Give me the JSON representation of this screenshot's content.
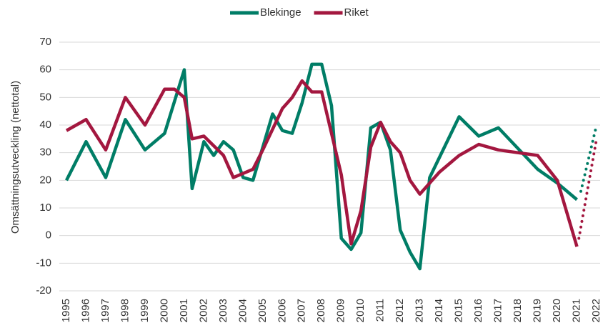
{
  "chart_data": {
    "type": "line",
    "y_label": "Omsättningsutveckling (nettotal)",
    "xlim": [
      1995,
      2022
    ],
    "xticks": [
      1995,
      1996,
      1997,
      1998,
      1999,
      2000,
      2001,
      2002,
      2003,
      2004,
      2005,
      2006,
      2007,
      2008,
      2009,
      2010,
      2011,
      2012,
      2013,
      2014,
      2015,
      2016,
      2017,
      2018,
      2019,
      2020,
      2021,
      2022
    ],
    "ylim": [
      -20,
      70
    ],
    "yticks": [
      -20,
      -10,
      0,
      10,
      20,
      30,
      40,
      50,
      60,
      70
    ],
    "grid": true,
    "legend": "top",
    "series": [
      {
        "name": "Blekinge",
        "color": "#007d66",
        "x": [
          1995,
          1996,
          1997,
          1998,
          1999,
          2000,
          2001,
          2001.4,
          2002,
          2002.5,
          2003,
          2003.5,
          2004,
          2004.5,
          2005.5,
          2006,
          2006.5,
          2007,
          2007.5,
          2008,
          2008.5,
          2009,
          2009.5,
          2010,
          2010.5,
          2011,
          2011.5,
          2012,
          2012.5,
          2013,
          2013.5,
          2015,
          2016,
          2017,
          2019,
          2020,
          2021
        ],
        "values": [
          20,
          34,
          21,
          42,
          31,
          37,
          60,
          17,
          34,
          29,
          34,
          31,
          21,
          20,
          44,
          38,
          37,
          48,
          62,
          62,
          47,
          -1,
          -5,
          1,
          39,
          41,
          31,
          2,
          -6,
          -12,
          21,
          43,
          36,
          39,
          24,
          19,
          13
        ],
        "forecast": {
          "x": [
            2021.2,
            2022
          ],
          "values": [
            16,
            40
          ]
        }
      },
      {
        "name": "Riket",
        "color": "#a3173f",
        "x": [
          1995,
          1996,
          1997,
          1998,
          1999,
          2000,
          2000.5,
          2001,
          2001.4,
          2002,
          2003,
          2003.5,
          2004.5,
          2005,
          2006,
          2006.5,
          2007,
          2007.5,
          2008,
          2009,
          2009.5,
          2010,
          2010.5,
          2011,
          2011.5,
          2012,
          2012.5,
          2013,
          2014,
          2015,
          2016,
          2017,
          2018,
          2019,
          2020,
          2021
        ],
        "values": [
          38,
          42,
          31,
          50,
          40,
          53,
          53,
          50,
          35,
          36,
          29,
          21,
          24,
          31,
          46,
          50,
          56,
          52,
          52,
          22,
          -3,
          9,
          32,
          41,
          34,
          30,
          20,
          15,
          23,
          29,
          33,
          31,
          30,
          29,
          20,
          -4
        ],
        "forecast": {
          "x": [
            2021.1,
            2022
          ],
          "values": [
            -1,
            35
          ]
        }
      }
    ]
  }
}
